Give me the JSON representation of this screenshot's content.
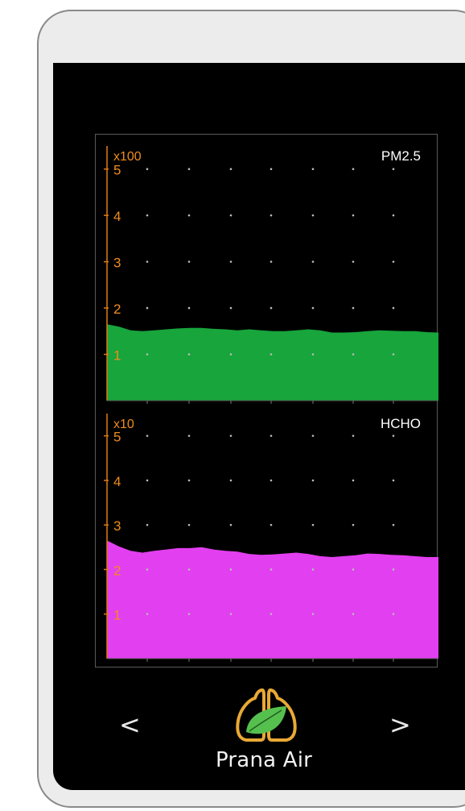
{
  "device": {
    "brand": "Prana Air",
    "nav_prev": "<",
    "nav_next": ">",
    "logo_icon": "lungs-leaf-icon"
  },
  "colors": {
    "screen": "#000000",
    "axis": "#e07a14",
    "tick_label": "#f08c1c",
    "grid_dot": "#bbbbbb",
    "pm25_fill": "#17a53c",
    "hcho_fill": "#e23ff0",
    "logo_outline": "#e9a935",
    "logo_leaf": "#56c04f"
  },
  "chart_data": [
    {
      "type": "area",
      "title": "PM2.5",
      "multiplier": "x100",
      "ylim": [
        0,
        5.5
      ],
      "yticks": [
        1,
        2,
        3,
        4,
        5
      ],
      "grid": "dots",
      "values": [
        1.65,
        1.6,
        1.52,
        1.5,
        1.52,
        1.54,
        1.56,
        1.57,
        1.57,
        1.55,
        1.54,
        1.52,
        1.54,
        1.52,
        1.5,
        1.5,
        1.52,
        1.54,
        1.52,
        1.47,
        1.47,
        1.48,
        1.5,
        1.52,
        1.51,
        1.5,
        1.5,
        1.48,
        1.47
      ],
      "color": "#17a53c"
    },
    {
      "type": "area",
      "title": "HCHO",
      "multiplier": "x10",
      "ylim": [
        0,
        5.5
      ],
      "yticks": [
        1,
        2,
        3,
        4,
        5
      ],
      "grid": "dots",
      "values": [
        2.65,
        2.52,
        2.42,
        2.38,
        2.42,
        2.45,
        2.48,
        2.48,
        2.5,
        2.45,
        2.42,
        2.4,
        2.35,
        2.33,
        2.34,
        2.36,
        2.38,
        2.35,
        2.3,
        2.28,
        2.3,
        2.32,
        2.36,
        2.35,
        2.33,
        2.32,
        2.3,
        2.28,
        2.28
      ],
      "color": "#e23ff0"
    }
  ]
}
